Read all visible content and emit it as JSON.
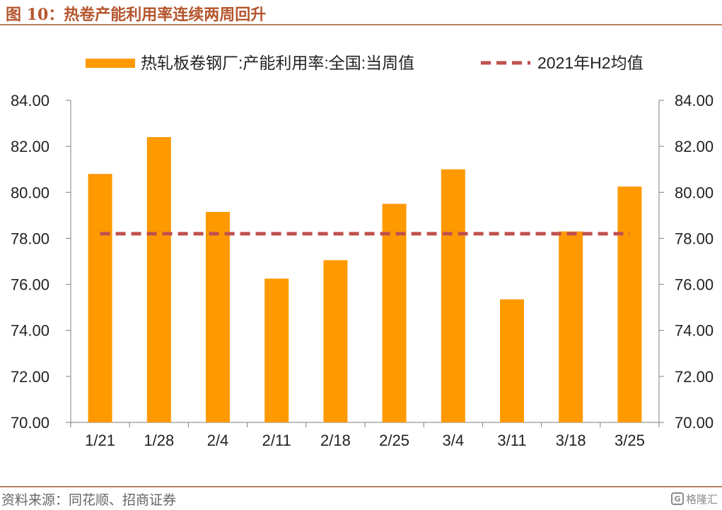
{
  "header": {
    "title": "图 10：热卷产能利用率连续两周回升"
  },
  "footer": {
    "source": "资料来源：同花顺、招商证券",
    "watermark": "格隆汇"
  },
  "colors": {
    "bar": "#FF9900",
    "avg_line": "#C0504D",
    "accent": "#B5552D",
    "rule": "#B8805F"
  },
  "chart_data": {
    "type": "bar",
    "categories": [
      "1/21",
      "1/28",
      "2/4",
      "2/11",
      "2/18",
      "2/25",
      "3/4",
      "3/11",
      "3/18",
      "3/25"
    ],
    "series": [
      {
        "name": "热轧板卷钢厂:产能利用率:全国:当周值",
        "type": "bar",
        "values": [
          80.8,
          82.4,
          79.15,
          76.25,
          77.05,
          79.5,
          81.0,
          75.35,
          78.3,
          80.25
        ]
      },
      {
        "name": "2021年H2均值",
        "type": "line",
        "style": "dashed",
        "value": 78.2
      }
    ],
    "ylim": [
      70,
      84
    ],
    "yticks": [
      "70.00",
      "72.00",
      "74.00",
      "76.00",
      "78.00",
      "80.00",
      "82.00",
      "84.00"
    ],
    "y2ticks": [
      "70.00",
      "72.00",
      "74.00",
      "76.00",
      "78.00",
      "80.00",
      "82.00",
      "84.00"
    ],
    "legend": {
      "placement": "top"
    },
    "grid": false
  }
}
